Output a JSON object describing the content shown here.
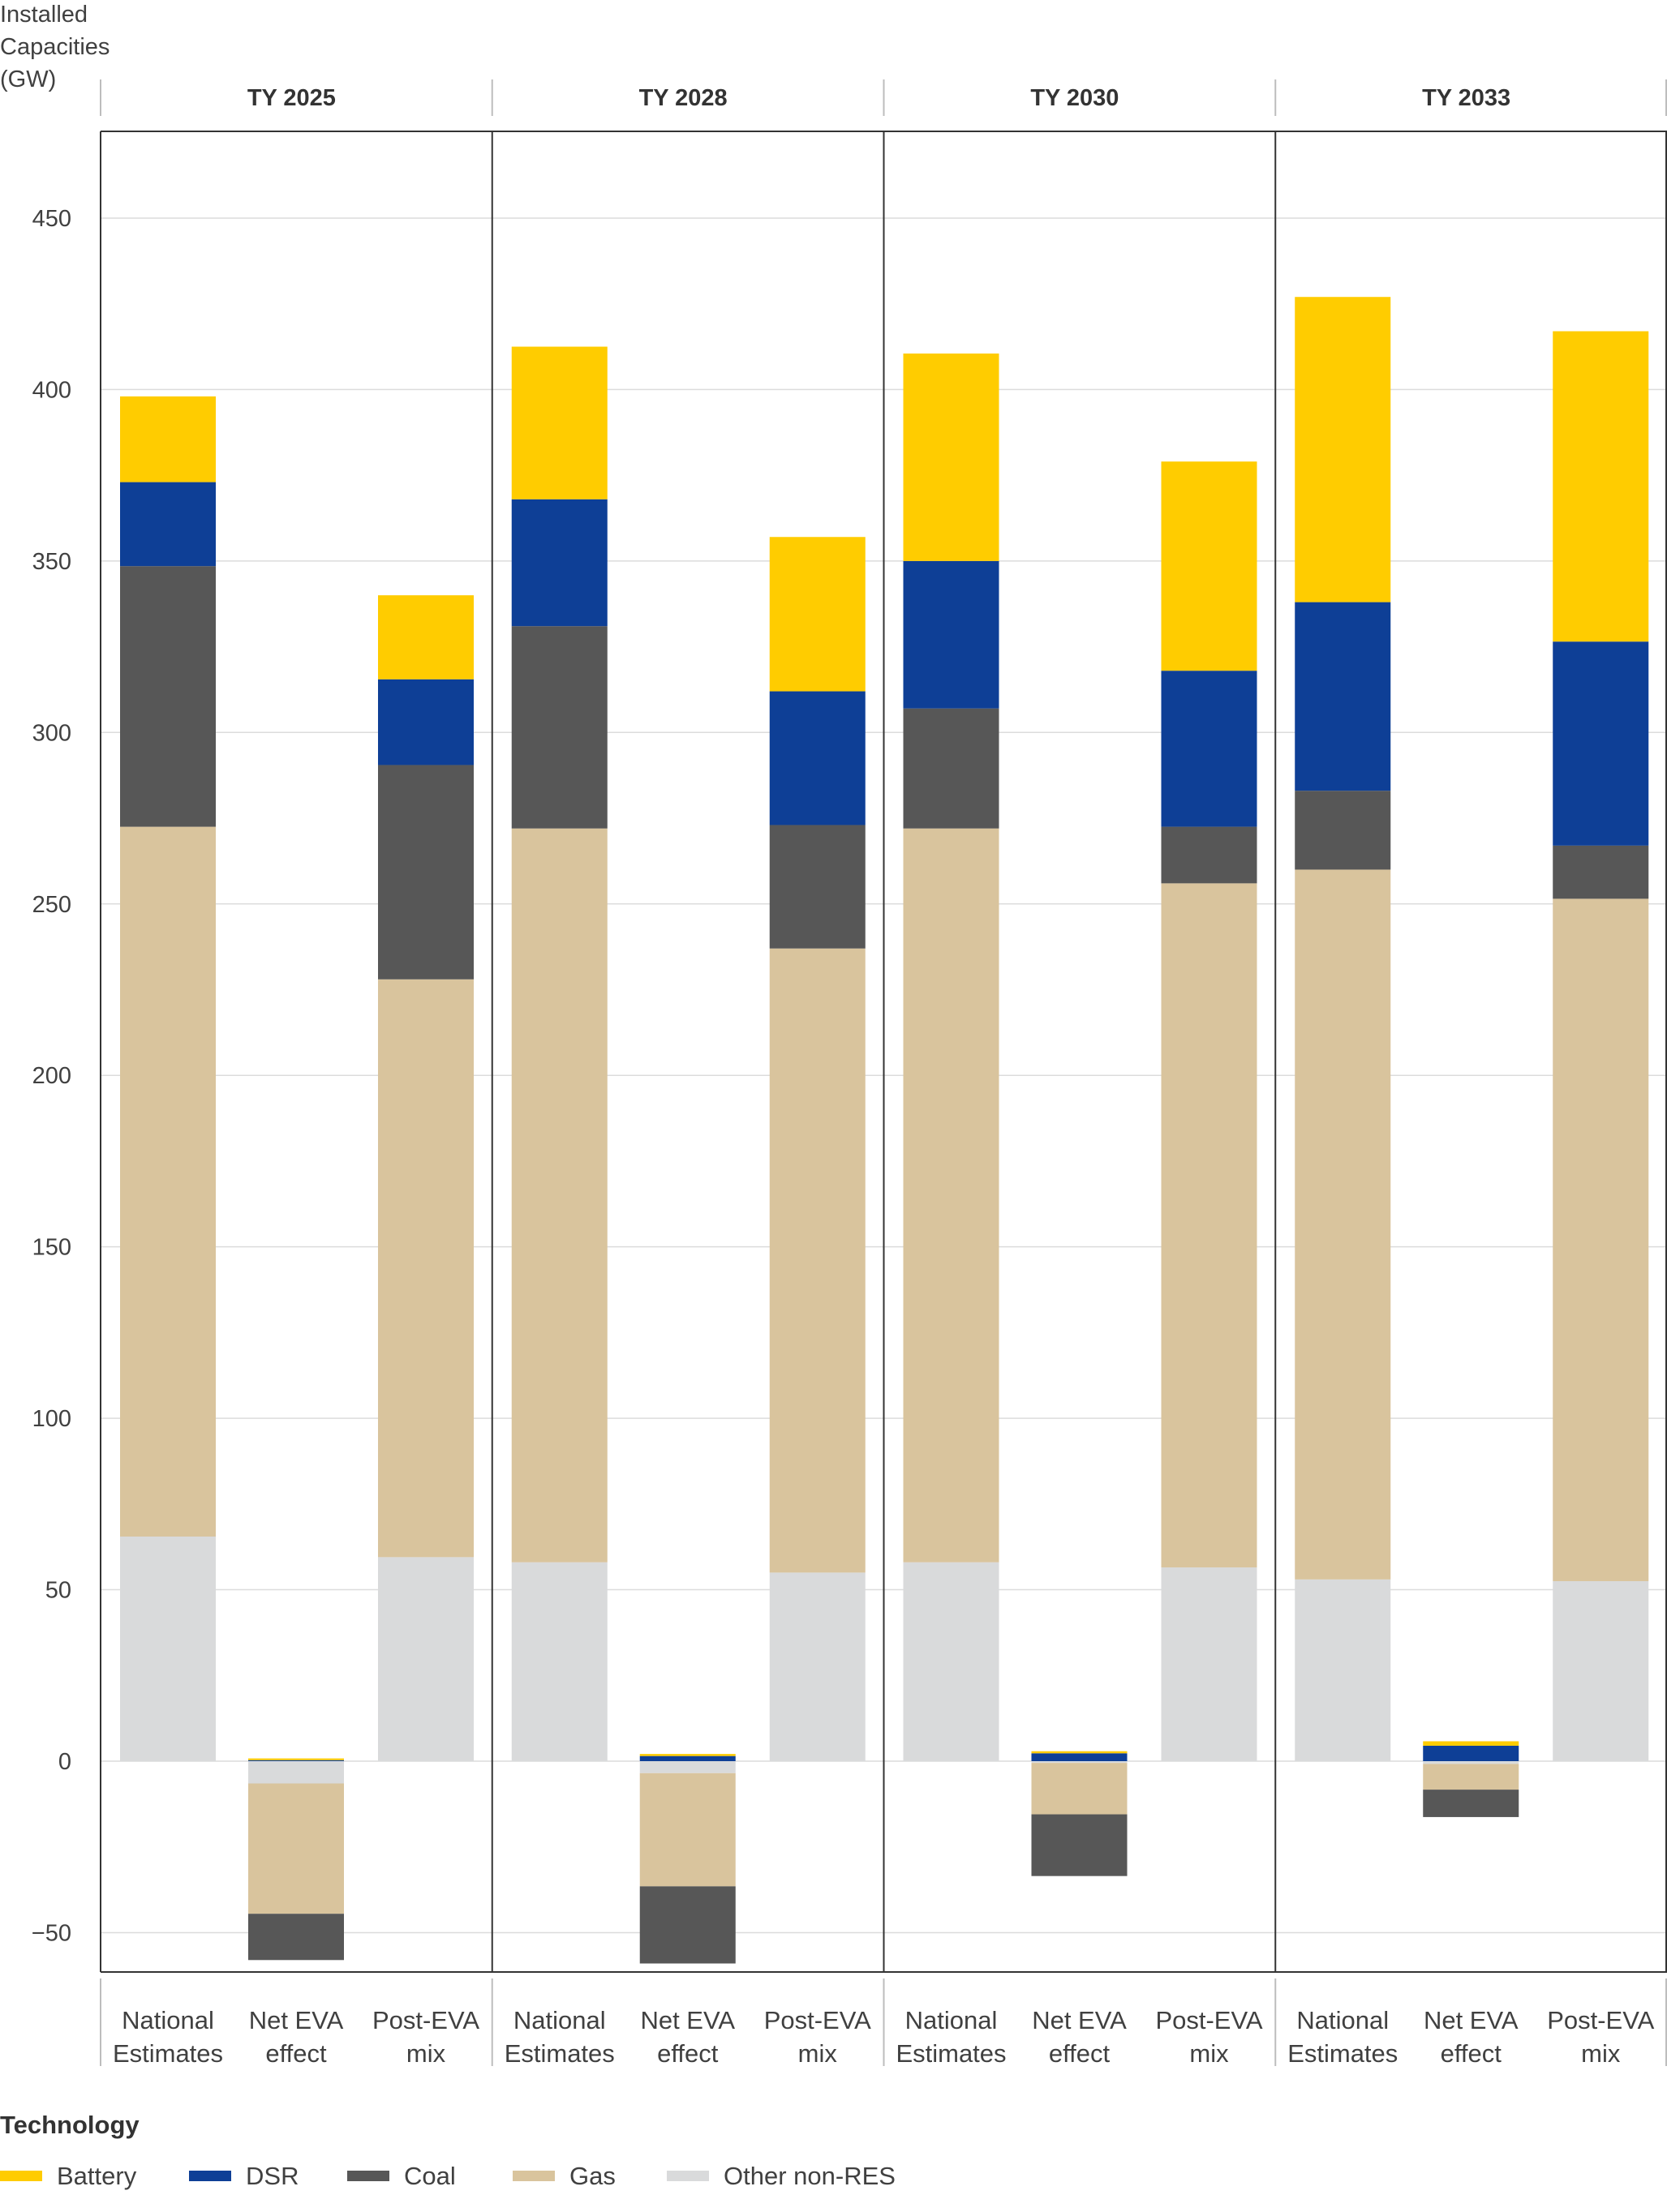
{
  "chart_data": {
    "type": "bar",
    "stacked": true,
    "ylabel_lines": [
      "Installed",
      "Capacities",
      "(GW)"
    ],
    "ylim": [
      -60,
      475
    ],
    "yticks": [
      -50,
      0,
      50,
      100,
      150,
      200,
      250,
      300,
      350,
      400,
      450
    ],
    "ytick_labels": [
      "−50",
      "0",
      "50",
      "100",
      "150",
      "200",
      "250",
      "300",
      "350",
      "400",
      "450"
    ],
    "grid": true,
    "panels": [
      "TY 2025",
      "TY 2028",
      "TY 2030",
      "TY 2033"
    ],
    "categories": [
      [
        "National",
        "Estimates"
      ],
      [
        "Net EVA",
        "effect"
      ],
      [
        "Post-EVA",
        "mix"
      ]
    ],
    "legend": {
      "title": "Technology",
      "position": "bottom-left"
    },
    "series": [
      {
        "name": "Other non-RES",
        "color": "#d9dadb",
        "values": [
          [
            65.5,
            -6.5,
            59.5
          ],
          [
            58,
            -3.5,
            55
          ],
          [
            58,
            -0.5,
            56.5
          ],
          [
            53,
            -0.8,
            52.5
          ]
        ]
      },
      {
        "name": "Gas",
        "color": "#d9c49d",
        "values": [
          [
            207,
            -38,
            168.5
          ],
          [
            214,
            -33,
            182
          ],
          [
            214,
            -15,
            199.5
          ],
          [
            207,
            -7.5,
            199
          ]
        ]
      },
      {
        "name": "Coal",
        "color": "#575757",
        "values": [
          [
            76,
            -13.5,
            62.5
          ],
          [
            59,
            -22.5,
            36
          ],
          [
            35,
            -18,
            16.5
          ],
          [
            23,
            -8,
            15.5
          ]
        ]
      },
      {
        "name": "DSR",
        "color": "#0e3f96",
        "values": [
          [
            24.5,
            0.3,
            25
          ],
          [
            37,
            1.5,
            39
          ],
          [
            43,
            2.3,
            45.5
          ],
          [
            55,
            4.5,
            59.5
          ]
        ]
      },
      {
        "name": "Battery",
        "color": "#ffcc00",
        "values": [
          [
            25,
            0.5,
            24.5
          ],
          [
            44.5,
            0.6,
            45
          ],
          [
            60.5,
            0.6,
            61
          ],
          [
            89,
            1.3,
            90.5
          ]
        ]
      }
    ]
  }
}
